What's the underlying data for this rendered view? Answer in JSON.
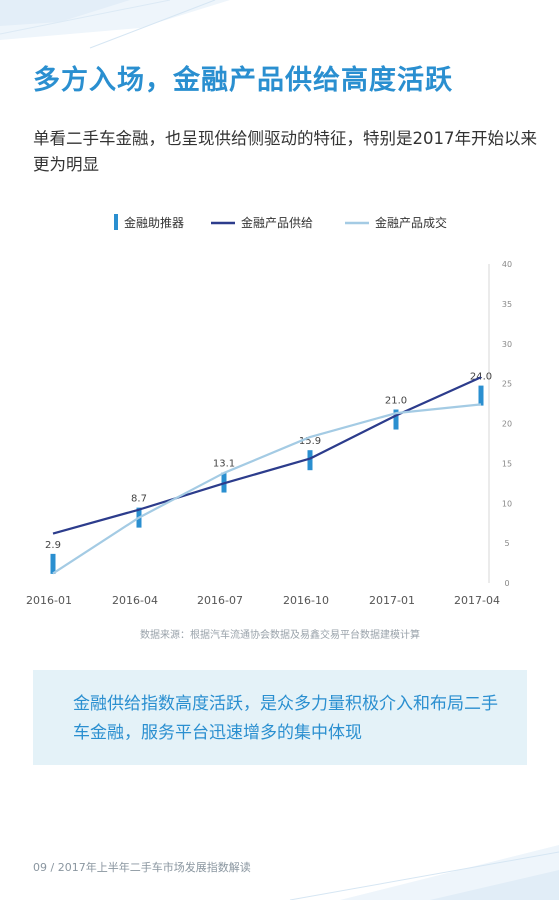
{
  "title": "多方入场，金融产品供给高度活跃",
  "subtitle": "单看二手车金融，也呈现供给侧驱动的特征，特别是2017年开始以来更为明显",
  "chart_data": {
    "type": "bar-line",
    "categories": [
      "2016-01",
      "2016-04",
      "2016-07",
      "2016-10",
      "2017-01",
      "2017-04"
    ],
    "series": [
      {
        "name": "金融助推器",
        "type": "bar",
        "color": "#2a8fd0",
        "values": [
          2.9,
          8.7,
          13.1,
          15.9,
          21.0,
          24.0
        ],
        "labels": [
          "2.9",
          "8.7",
          "13.1",
          "15.9",
          "21.0",
          "24.0"
        ]
      },
      {
        "name": "金融产品供给",
        "type": "line",
        "color": "#2c3c8c",
        "values": [
          6.2,
          9.2,
          12.5,
          15.6,
          21.0,
          25.8
        ]
      },
      {
        "name": "金融产品成交",
        "type": "line",
        "color": "#a4cbe4",
        "values": [
          1.2,
          8.2,
          13.8,
          18.3,
          21.3,
          22.4
        ]
      }
    ],
    "yticks": [
      "0",
      "5",
      "10",
      "15",
      "20",
      "25",
      "30",
      "35",
      "40"
    ],
    "ylim": [
      0,
      40
    ],
    "legend_position": "top",
    "source": "数据来源：根据汽车流通协会数据及易鑫交易平台数据建模计算"
  },
  "callout": "金融供给指数高度活跃，是众多力量积极介入和布局二手车金融，服务平台迅速增多的集中体现",
  "footer": "09 / 2017年上半年二手车市场发展指数解读"
}
